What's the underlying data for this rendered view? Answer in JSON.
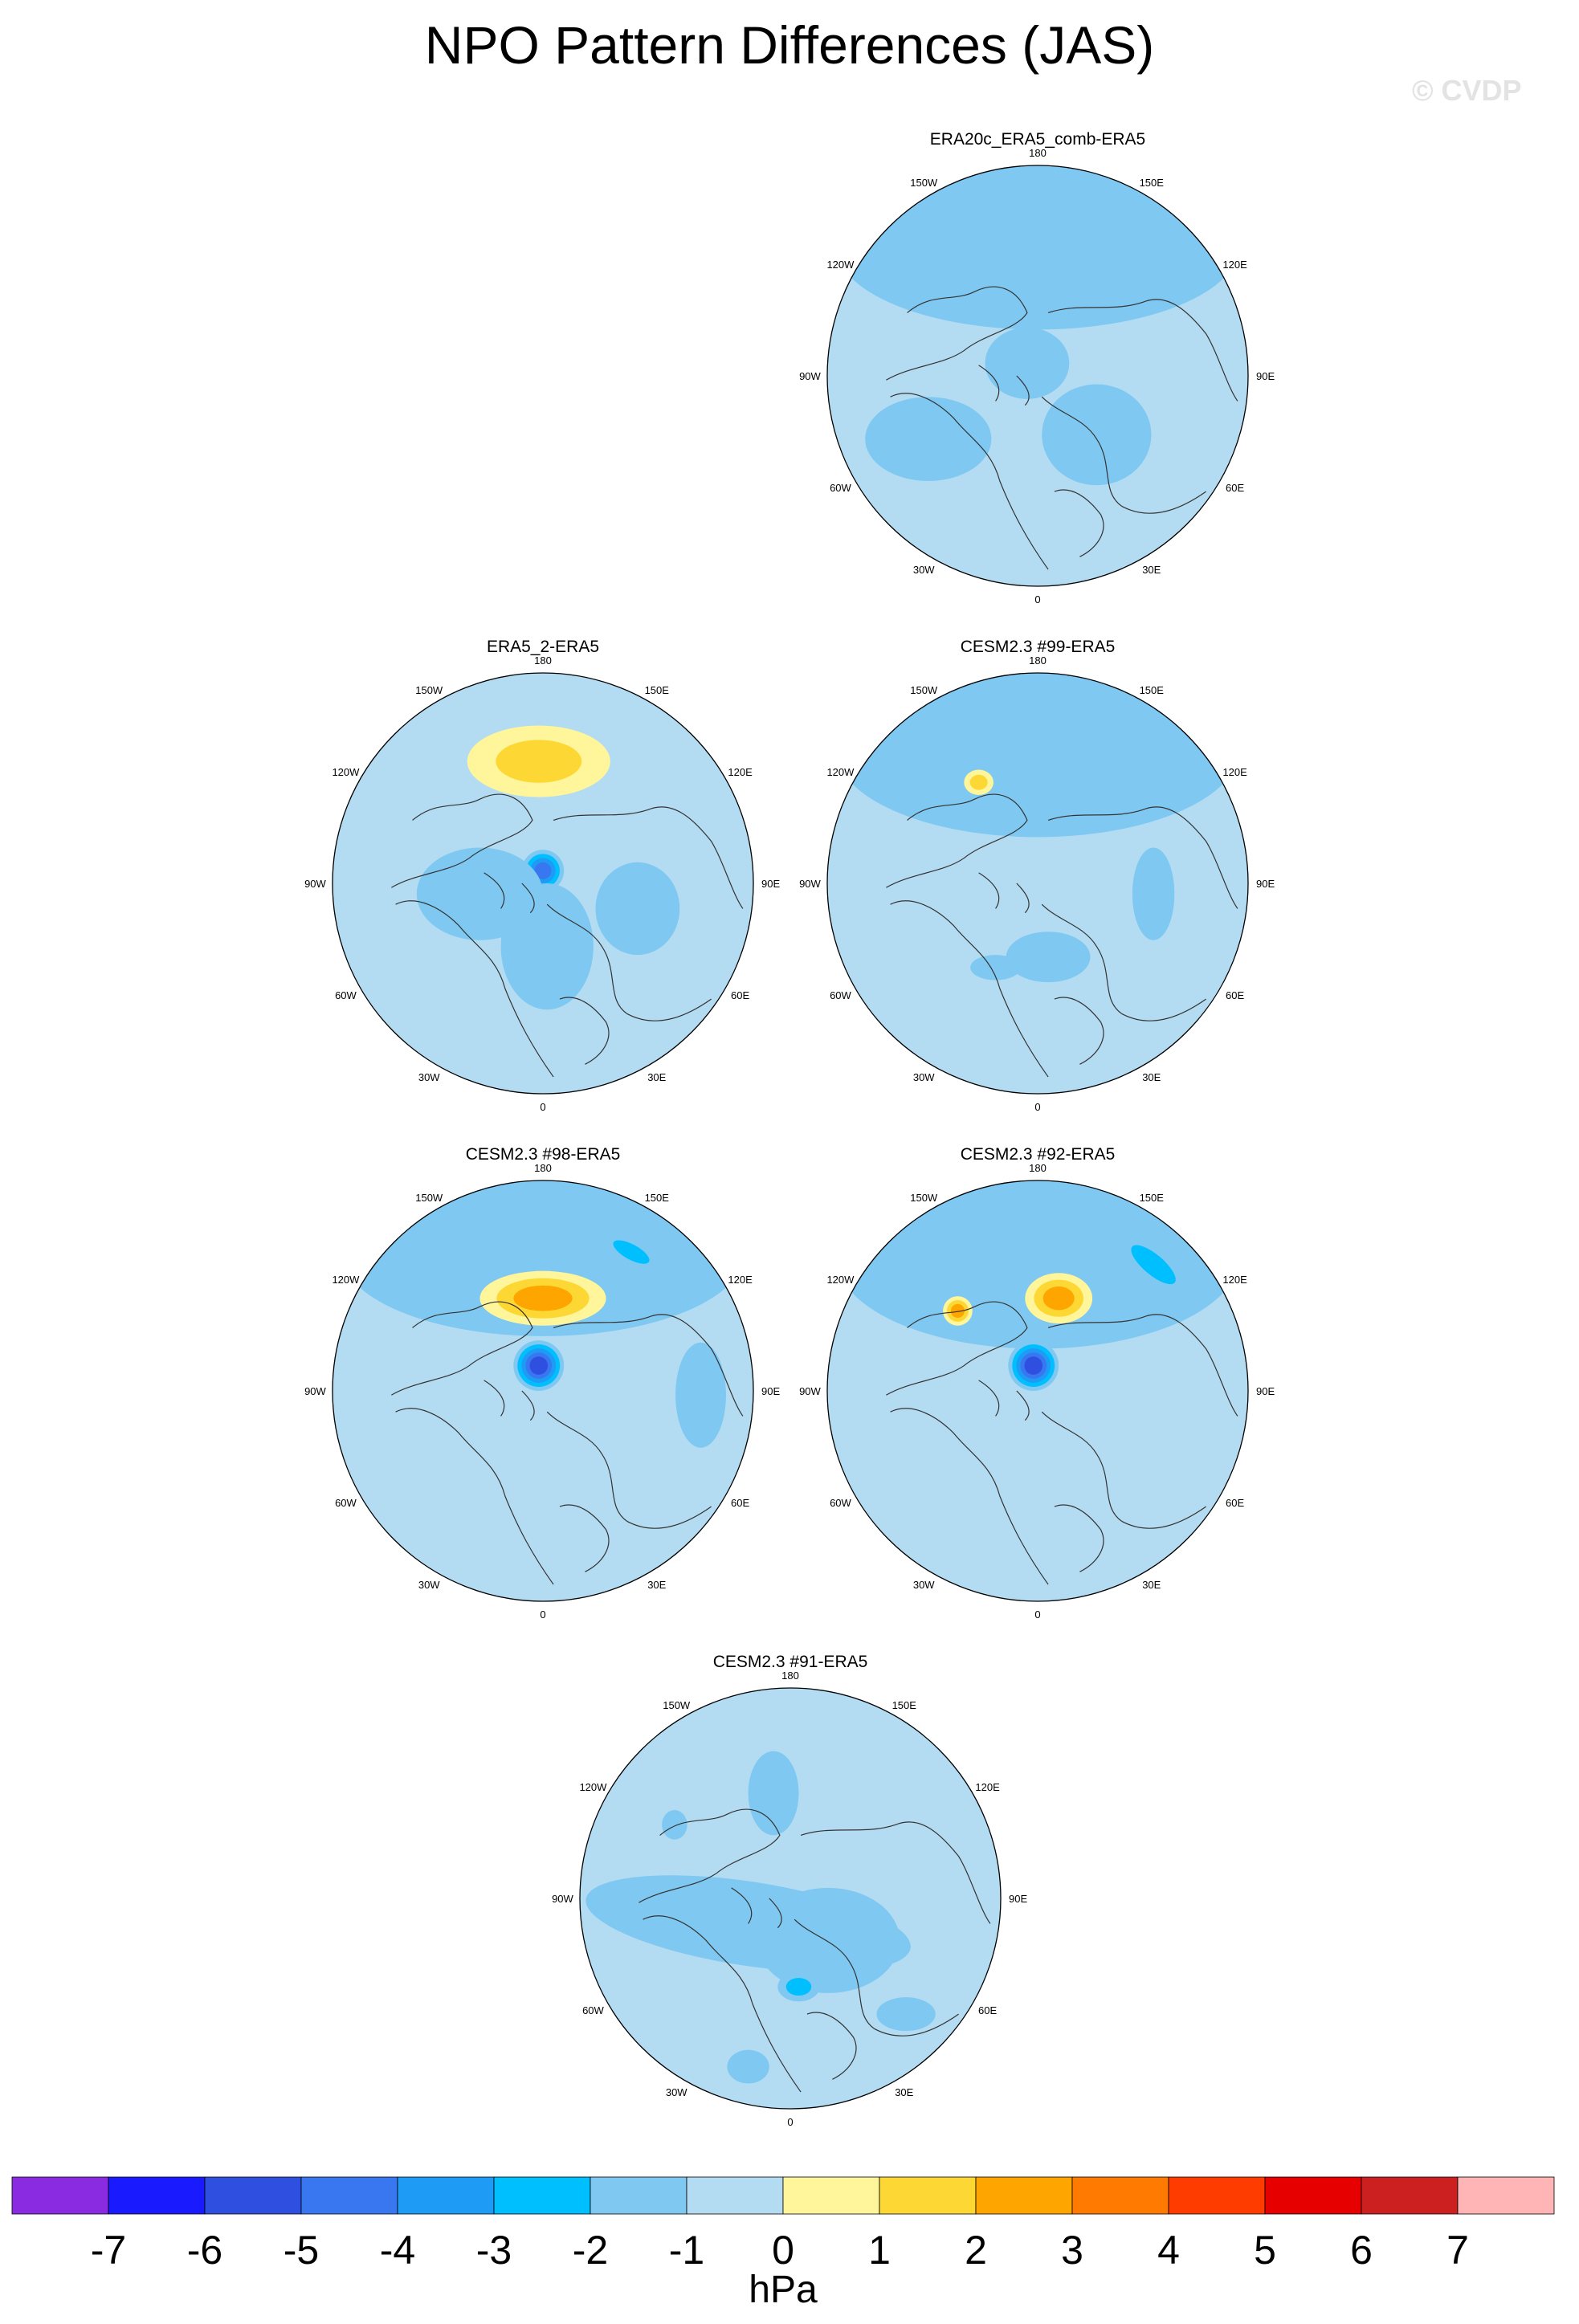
{
  "figure": {
    "title": "NPO Pattern Differences (JAS)",
    "watermark": "© CVDP"
  },
  "chart_data": {
    "type": "contour-map",
    "projection": "north polar stereographic",
    "variable": "sea level pressure difference",
    "units": "hPa",
    "longitude_labels": [
      "180",
      "150E",
      "120E",
      "90E",
      "60E",
      "30E",
      "0",
      "30W",
      "60W",
      "90W",
      "120W",
      "150W"
    ],
    "colorbar": {
      "ticks": [
        "-7",
        "-6",
        "-5",
        "-4",
        "-3",
        "-2",
        "-1",
        "0",
        "1",
        "2",
        "3",
        "4",
        "5",
        "6",
        "7"
      ],
      "colors": [
        "#8a2be2",
        "#1a1aff",
        "#2f4fe0",
        "#3877ef",
        "#1e9bf5",
        "#00bfff",
        "#7ec8f1",
        "#b3dcf2",
        "#fff59a",
        "#fdd835",
        "#ffa500",
        "#ff7a00",
        "#ff3c00",
        "#e60000",
        "#cc2020",
        "#ffb5b5"
      ],
      "unit_label": "hPa"
    },
    "panels": [
      {
        "title": "ERA20c_ERA5_comb-ERA5",
        "features": [
          {
            "sign": "negative",
            "level": -1,
            "region": "broad band over North Pacific / Siberia margin"
          },
          {
            "sign": "negative",
            "level": -1,
            "region": "North Atlantic"
          },
          {
            "sign": "negative",
            "level": -1,
            "region": "Europe / Barents"
          },
          {
            "sign": "negative",
            "level": -1,
            "region": "pole"
          }
        ]
      },
      {
        "title": "ERA5_2-ERA5",
        "features": [
          {
            "sign": "positive",
            "level": 2,
            "region": "Bering Sea / East Siberia"
          },
          {
            "sign": "negative",
            "level": -4,
            "region": "Arctic pole"
          },
          {
            "sign": "negative",
            "level": -1,
            "region": "Canada and Siberia"
          }
        ]
      },
      {
        "title": "CESM2.3 #99-ERA5",
        "features": [
          {
            "sign": "negative",
            "level": -1,
            "region": "North Pacific band"
          },
          {
            "sign": "positive",
            "level": 2,
            "region": "Alaska"
          },
          {
            "sign": "negative",
            "level": -1,
            "region": "scattered Atlantic / Europe"
          }
        ]
      },
      {
        "title": "CESM2.3 #98-ERA5",
        "features": [
          {
            "sign": "negative",
            "level": -1,
            "region": "North Pacific rim"
          },
          {
            "sign": "negative",
            "level": -2,
            "region": "Kamchatka"
          },
          {
            "sign": "positive",
            "level": 3,
            "region": "Bering / East Siberia"
          },
          {
            "sign": "negative",
            "level": -5,
            "region": "Arctic pole"
          }
        ]
      },
      {
        "title": "CESM2.3 #92-ERA5",
        "features": [
          {
            "sign": "negative",
            "level": -1,
            "region": "North Pacific rim"
          },
          {
            "sign": "negative",
            "level": -2,
            "region": "Kamchatka / Okhotsk"
          },
          {
            "sign": "positive",
            "level": 3,
            "region": "East Siberia"
          },
          {
            "sign": "negative",
            "level": -5,
            "region": "Arctic pole"
          }
        ]
      },
      {
        "title": "CESM2.3 #91-ERA5",
        "features": [
          {
            "sign": "negative",
            "level": -1,
            "region": "broad ring North Atlantic to Canada"
          },
          {
            "sign": "negative",
            "level": -2,
            "region": "Barents Sea"
          },
          {
            "sign": "negative",
            "level": -1,
            "region": "Aleutians"
          }
        ]
      }
    ]
  }
}
